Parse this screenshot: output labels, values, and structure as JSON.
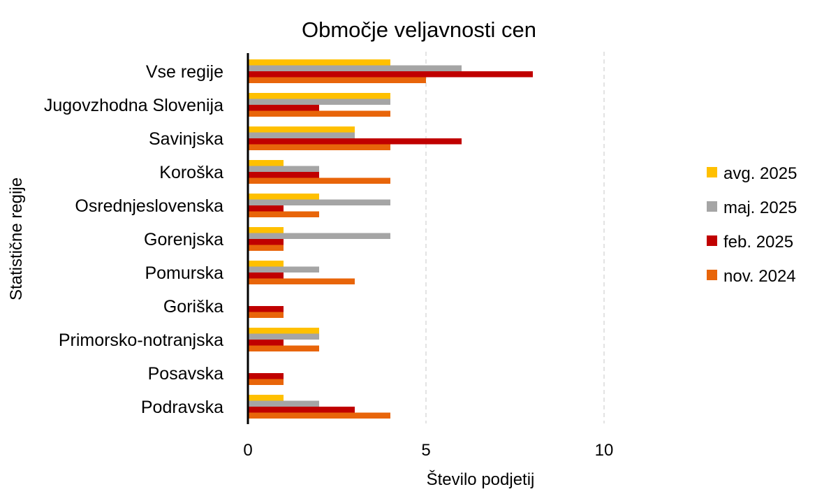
{
  "chart_data": {
    "type": "bar",
    "orientation": "horizontal",
    "title": "Območje veljavnosti cen",
    "xlabel": "Število podjetij",
    "ylabel": "Statistične regije",
    "categories": [
      "Vse regije",
      "Jugovzhodna Slovenija",
      "Savinjska",
      "Koroška",
      "Osrednjeslovenska",
      "Gorenjska",
      "Pomurska",
      "Goriška",
      "Primorsko-notranjska",
      "Posavska",
      "Podravska"
    ],
    "series": [
      {
        "name": "avg. 2025",
        "color": "#FFC000",
        "values": [
          4,
          4,
          3,
          1,
          2,
          1,
          1,
          0,
          2,
          0,
          1
        ]
      },
      {
        "name": "maj. 2025",
        "color": "#A5A5A5",
        "values": [
          6,
          4,
          3,
          2,
          4,
          4,
          2,
          0,
          2,
          0,
          2
        ]
      },
      {
        "name": "feb. 2025",
        "color": "#C00000",
        "values": [
          8,
          2,
          6,
          2,
          1,
          1,
          1,
          1,
          1,
          1,
          3
        ]
      },
      {
        "name": "nov. 2024",
        "color": "#E8650A",
        "values": [
          5,
          4,
          4,
          4,
          2,
          1,
          3,
          1,
          2,
          1,
          4
        ]
      }
    ],
    "xlim": [
      0,
      15
    ],
    "xticks": [
      0,
      5,
      10
    ],
    "grid": true,
    "legend_position": "right"
  }
}
